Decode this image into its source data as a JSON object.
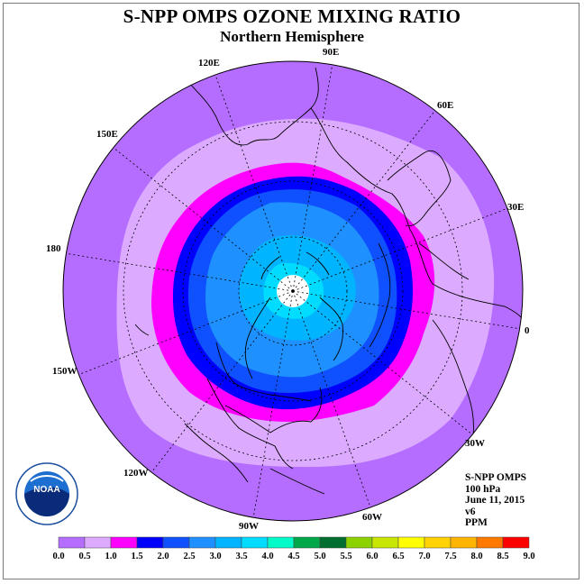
{
  "title": "S-NPP OMPS OZONE MIXING RATIO",
  "subtitle": "Northern Hemisphere",
  "longitude_labels": [
    "90E",
    "60E",
    "30E",
    "0",
    "30W",
    "60W",
    "90W",
    "120W",
    "150W",
    "180",
    "150E",
    "120E"
  ],
  "info": {
    "instrument": "S-NPP OMPS",
    "level": "100 hPa",
    "date": "June 11, 2015",
    "version": "v6",
    "units": "PPM"
  },
  "colorbar": {
    "ticks": [
      "0.0",
      "0.5",
      "1.0",
      "1.5",
      "2.0",
      "2.5",
      "3.0",
      "3.5",
      "4.0",
      "4.5",
      "5.0",
      "5.5",
      "6.0",
      "6.5",
      "7.0",
      "7.5",
      "8.0",
      "8.5",
      "9.0"
    ],
    "colors": [
      "#b46dff",
      "#dcaaff",
      "#ff00ff",
      "#0000ff",
      "#0f50ff",
      "#1e90ff",
      "#00b4ff",
      "#00dcff",
      "#00fac8",
      "#00a84a",
      "#006e2e",
      "#8cd200",
      "#c8e600",
      "#ffff00",
      "#ffd200",
      "#ffb400",
      "#ff7800",
      "#ff0000",
      "#a05a2c"
    ]
  },
  "ozone_field_ppm": {
    "outer_band": "0.0-0.5",
    "middle_band": "0.5-1.0",
    "collar": "1.0-1.5",
    "vortex_edge": "1.5-2.0",
    "interior": "2.0-3.0",
    "core": "3.0-3.5",
    "pole": "no data"
  },
  "logo": {
    "text": "NOAA"
  }
}
